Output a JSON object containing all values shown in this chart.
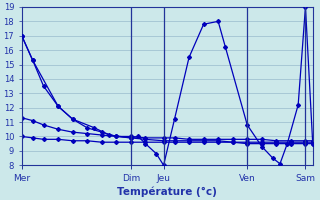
{
  "xlabel": "Température (°c)",
  "bg_color": "#cce8ea",
  "line_color": "#0000bb",
  "grid_color": "#99bbcc",
  "text_color": "#2233aa",
  "ylim": [
    8,
    19
  ],
  "yticks": [
    8,
    9,
    10,
    11,
    12,
    13,
    14,
    15,
    16,
    17,
    18,
    19
  ],
  "day_labels": [
    "Mer",
    "Dim",
    "Jeu",
    "Ven",
    "Sam"
  ],
  "day_x": [
    0,
    15.0,
    19.5,
    31.0,
    39.0
  ],
  "s1_x": [
    0,
    1.5,
    5,
    7,
    10,
    12,
    15.0,
    16,
    17,
    18.5,
    19.5,
    21,
    23,
    25,
    27,
    28,
    31.0,
    33,
    34.5,
    35.5,
    36.5,
    38,
    39.0,
    40
  ],
  "s1_y": [
    17,
    15.3,
    12.1,
    11.2,
    10.6,
    10.1,
    9.9,
    10.0,
    9.5,
    8.8,
    8.0,
    11.2,
    15.5,
    17.8,
    18.0,
    16.2,
    10.8,
    9.3,
    8.5,
    8.1,
    9.5,
    12.2,
    19.0,
    9.5
  ],
  "s2_x": [
    0,
    1.5,
    3,
    5,
    7,
    9,
    11,
    13,
    15.0,
    17,
    19.5,
    21,
    23,
    25,
    27,
    29,
    31.0,
    33,
    35,
    37,
    39.0,
    40
  ],
  "s2_y": [
    17,
    15.3,
    13.5,
    12.1,
    11.2,
    10.6,
    10.3,
    10.0,
    9.9,
    9.8,
    9.7,
    9.7,
    9.7,
    9.7,
    9.7,
    9.6,
    9.6,
    9.6,
    9.6,
    9.6,
    9.6,
    9.6
  ],
  "s3_x": [
    0,
    1.5,
    3,
    5,
    7,
    9,
    11,
    13,
    15.0,
    17,
    19.5,
    21,
    23,
    25,
    27,
    29,
    31.0,
    33,
    35,
    37,
    39.0,
    40
  ],
  "s3_y": [
    11.3,
    11.1,
    10.8,
    10.5,
    10.3,
    10.2,
    10.1,
    10.0,
    10.0,
    9.9,
    9.9,
    9.9,
    9.8,
    9.8,
    9.8,
    9.8,
    9.8,
    9.8,
    9.7,
    9.7,
    9.7,
    9.7
  ],
  "s4_x": [
    0,
    1.5,
    3,
    5,
    7,
    9,
    11,
    13,
    15.0,
    17,
    19.5,
    21,
    23,
    25,
    27,
    29,
    31.0,
    33,
    35,
    37,
    39.0,
    40
  ],
  "s4_y": [
    10.0,
    9.9,
    9.8,
    9.8,
    9.7,
    9.7,
    9.6,
    9.6,
    9.6,
    9.6,
    9.6,
    9.6,
    9.6,
    9.6,
    9.6,
    9.6,
    9.5,
    9.5,
    9.5,
    9.5,
    9.5,
    9.5
  ]
}
